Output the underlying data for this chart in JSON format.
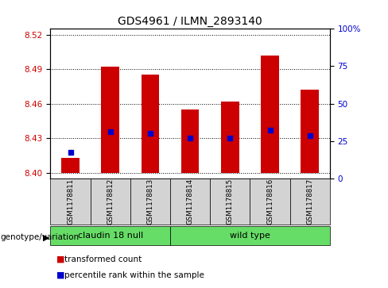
{
  "title": "GDS4961 / ILMN_2893140",
  "samples": [
    "GSM1178811",
    "GSM1178812",
    "GSM1178813",
    "GSM1178814",
    "GSM1178815",
    "GSM1178816",
    "GSM1178817"
  ],
  "bar_values": [
    8.413,
    8.492,
    8.485,
    8.455,
    8.462,
    8.502,
    8.472
  ],
  "bar_base": 8.4,
  "percentile_values": [
    8.418,
    8.436,
    8.434,
    8.43,
    8.43,
    8.437,
    8.432
  ],
  "ylim_left": [
    8.395,
    8.525
  ],
  "ylim_right": [
    0,
    100
  ],
  "yticks_left": [
    8.4,
    8.43,
    8.46,
    8.49,
    8.52
  ],
  "yticks_right": [
    0,
    25,
    50,
    75,
    100
  ],
  "group_boundaries": [
    {
      "label": "claudin 18 null",
      "start": 0,
      "end": 3
    },
    {
      "label": "wild type",
      "start": 3,
      "end": 7
    }
  ],
  "group_label_prefix": "genotype/variation",
  "bar_color": "#CC0000",
  "percentile_color": "#0000CC",
  "bar_width": 0.45,
  "background_color": "#ffffff",
  "plot_bg_color": "#ffffff",
  "tick_label_color_left": "#CC0000",
  "tick_label_color_right": "#0000CC",
  "sample_box_color": "#d3d3d3",
  "group_box_color": "#66dd66",
  "legend_items": [
    {
      "label": "transformed count",
      "color": "#CC0000"
    },
    {
      "label": "percentile rank within the sample",
      "color": "#0000CC"
    }
  ]
}
